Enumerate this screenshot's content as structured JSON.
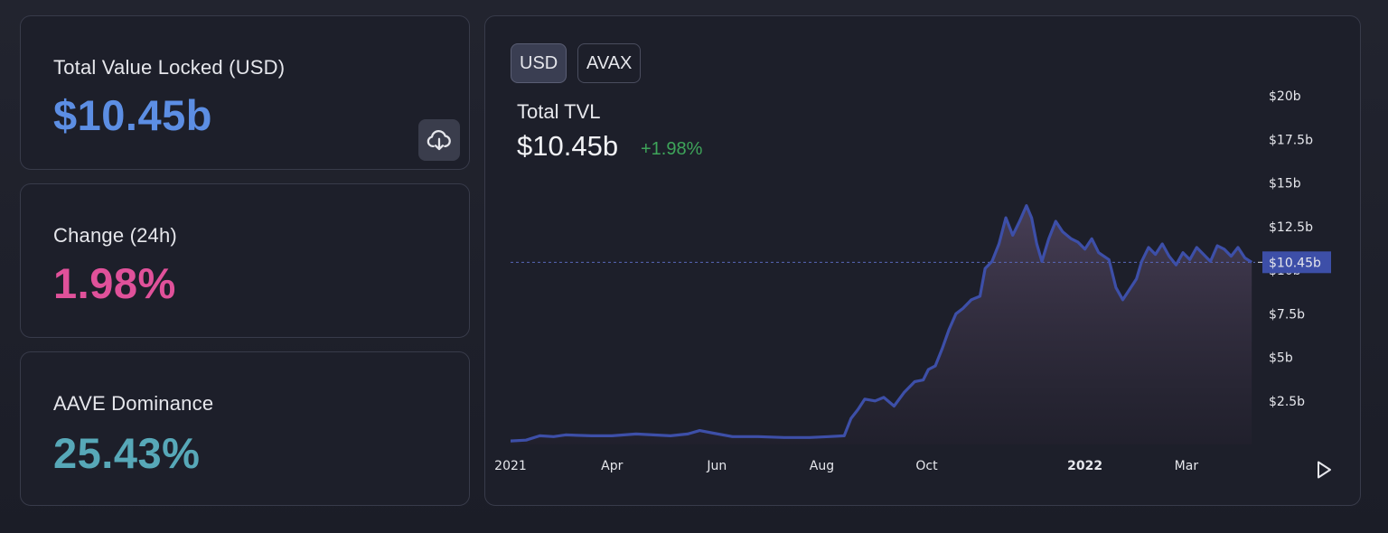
{
  "stats": {
    "tvl": {
      "label": "Total Value Locked (USD)",
      "value": "$10.45b"
    },
    "change": {
      "label": "Change (24h)",
      "value": "1.98%"
    },
    "dominance": {
      "label": "AAVE Dominance",
      "value": "25.43%"
    }
  },
  "icons": {
    "download": "cloud-download-icon",
    "play": "play-icon"
  },
  "toggles": {
    "usd": "USD",
    "avax": "AVAX",
    "selected": "USD"
  },
  "colors": {
    "tvl_value": "#5c8ee4",
    "change_value": "#e0519a",
    "dominance_value": "#57a8b8",
    "line": "#3d4fa8",
    "positive_change": "#3ea55a",
    "price_tag": "#3d4fa8"
  },
  "chart_header": {
    "title": "Total TVL",
    "value": "$10.45b",
    "change": "+1.98%"
  },
  "chart_data": {
    "type": "area",
    "y_unit": "billion USD",
    "y_ticks": [
      {
        "value": 2.5,
        "label": "$2.5b"
      },
      {
        "value": 5,
        "label": "$5b"
      },
      {
        "value": 7.5,
        "label": "$7.5b"
      },
      {
        "value": 10,
        "label": "$10b"
      },
      {
        "value": 12.5,
        "label": "$12.5b"
      },
      {
        "value": 15,
        "label": "$15b"
      },
      {
        "value": 17.5,
        "label": "$17.5b"
      },
      {
        "value": 20,
        "label": "$20b"
      }
    ],
    "x_ticks": [
      {
        "date": "2021-02-01",
        "label": "2021",
        "bold": false
      },
      {
        "date": "2021-04-01",
        "label": "Apr",
        "bold": false
      },
      {
        "date": "2021-06-01",
        "label": "Jun",
        "bold": false
      },
      {
        "date": "2021-08-01",
        "label": "Aug",
        "bold": false
      },
      {
        "date": "2021-10-01",
        "label": "Oct",
        "bold": false
      },
      {
        "date": "2022-01-01",
        "label": "2022",
        "bold": true
      },
      {
        "date": "2022-03-01",
        "label": "Mar",
        "bold": false
      }
    ],
    "x_range": [
      "2021-02-01",
      "2022-04-10"
    ],
    "ylim": [
      0,
      20
    ],
    "current_value": 10.45,
    "current_label": "$10.45b",
    "points": [
      [
        "2021-02-01",
        0.2
      ],
      [
        "2021-02-10",
        0.25
      ],
      [
        "2021-02-18",
        0.5
      ],
      [
        "2021-02-26",
        0.45
      ],
      [
        "2021-03-05",
        0.55
      ],
      [
        "2021-03-20",
        0.5
      ],
      [
        "2021-04-01",
        0.5
      ],
      [
        "2021-04-15",
        0.6
      ],
      [
        "2021-04-25",
        0.55
      ],
      [
        "2021-05-05",
        0.5
      ],
      [
        "2021-05-15",
        0.6
      ],
      [
        "2021-05-22",
        0.8
      ],
      [
        "2021-05-30",
        0.65
      ],
      [
        "2021-06-10",
        0.45
      ],
      [
        "2021-06-25",
        0.45
      ],
      [
        "2021-07-10",
        0.4
      ],
      [
        "2021-07-25",
        0.4
      ],
      [
        "2021-08-05",
        0.45
      ],
      [
        "2021-08-14",
        0.5
      ],
      [
        "2021-08-18",
        1.5
      ],
      [
        "2021-08-22",
        2.0
      ],
      [
        "2021-08-26",
        2.6
      ],
      [
        "2021-09-01",
        2.5
      ],
      [
        "2021-09-06",
        2.7
      ],
      [
        "2021-09-12",
        2.2
      ],
      [
        "2021-09-18",
        3.0
      ],
      [
        "2021-09-24",
        3.6
      ],
      [
        "2021-09-29",
        3.7
      ],
      [
        "2021-10-02",
        4.3
      ],
      [
        "2021-10-06",
        4.5
      ],
      [
        "2021-10-10",
        5.5
      ],
      [
        "2021-10-14",
        6.6
      ],
      [
        "2021-10-18",
        7.5
      ],
      [
        "2021-10-22",
        7.8
      ],
      [
        "2021-10-27",
        8.3
      ],
      [
        "2021-11-01",
        8.5
      ],
      [
        "2021-11-04",
        10.1
      ],
      [
        "2021-11-08",
        10.5
      ],
      [
        "2021-11-12",
        11.5
      ],
      [
        "2021-11-16",
        13.0
      ],
      [
        "2021-11-20",
        12.0
      ],
      [
        "2021-11-24",
        12.8
      ],
      [
        "2021-11-28",
        13.7
      ],
      [
        "2021-12-01",
        13.0
      ],
      [
        "2021-12-04",
        11.5
      ],
      [
        "2021-12-07",
        10.5
      ],
      [
        "2021-12-11",
        11.8
      ],
      [
        "2021-12-15",
        12.8
      ],
      [
        "2021-12-19",
        12.2
      ],
      [
        "2021-12-24",
        11.8
      ],
      [
        "2021-12-28",
        11.6
      ],
      [
        "2022-01-01",
        11.2
      ],
      [
        "2022-01-05",
        11.8
      ],
      [
        "2022-01-09",
        11.0
      ],
      [
        "2022-01-12",
        10.8
      ],
      [
        "2022-01-15",
        10.6
      ],
      [
        "2022-01-19",
        9.0
      ],
      [
        "2022-01-23",
        8.3
      ],
      [
        "2022-01-27",
        8.9
      ],
      [
        "2022-01-31",
        9.5
      ],
      [
        "2022-02-03",
        10.5
      ],
      [
        "2022-02-07",
        11.3
      ],
      [
        "2022-02-11",
        10.9
      ],
      [
        "2022-02-15",
        11.5
      ],
      [
        "2022-02-19",
        10.8
      ],
      [
        "2022-02-23",
        10.3
      ],
      [
        "2022-02-27",
        11.0
      ],
      [
        "2022-03-03",
        10.6
      ],
      [
        "2022-03-07",
        11.3
      ],
      [
        "2022-03-11",
        10.9
      ],
      [
        "2022-03-15",
        10.5
      ],
      [
        "2022-03-19",
        11.4
      ],
      [
        "2022-03-23",
        11.2
      ],
      [
        "2022-03-27",
        10.8
      ],
      [
        "2022-03-31",
        11.3
      ],
      [
        "2022-04-04",
        10.7
      ],
      [
        "2022-04-08",
        10.45
      ]
    ]
  }
}
